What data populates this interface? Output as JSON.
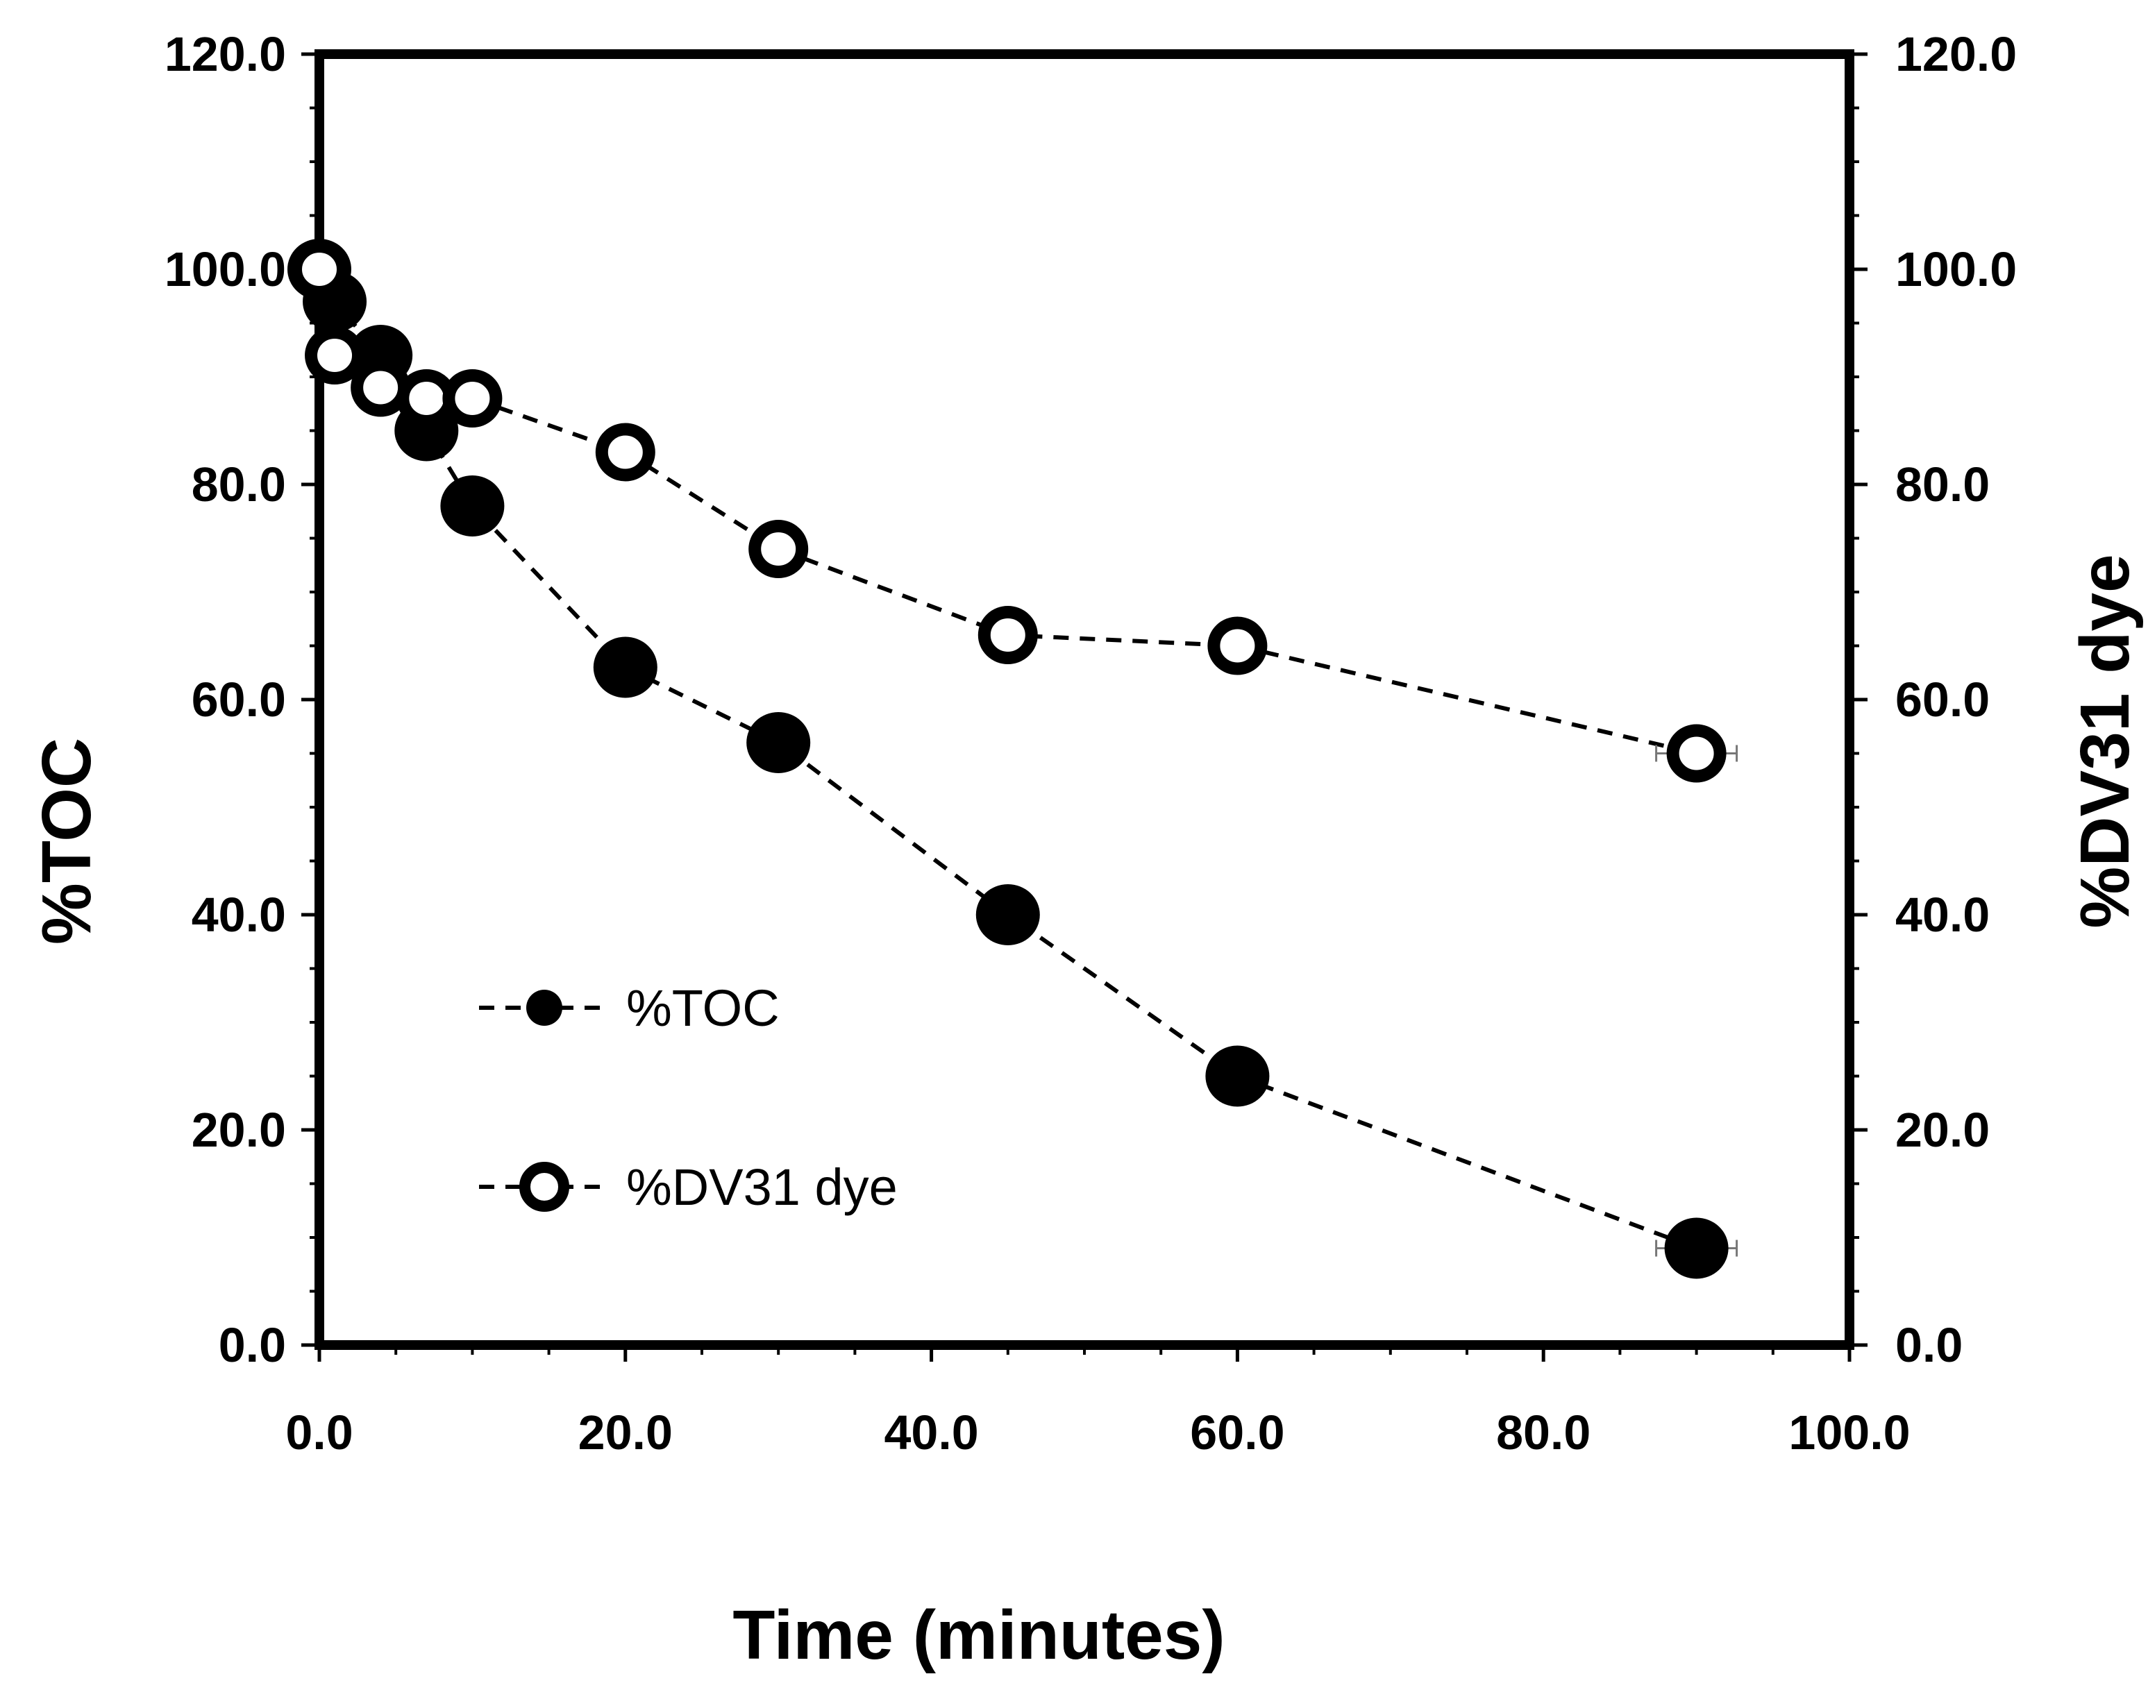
{
  "chart_data": {
    "type": "line",
    "title": "",
    "xlabel": "Time (minutes)",
    "ylabel": "%TOC",
    "y2label": "%DV31 dye",
    "xlim": [
      0,
      100
    ],
    "ylim": [
      0,
      120
    ],
    "y2lim": [
      0,
      120
    ],
    "x_ticks": [
      0,
      20,
      40,
      60,
      80,
      100
    ],
    "x_tick_labels": [
      "0.0",
      "20.0",
      "40.0",
      "60.0",
      "80.0",
      "100.0"
    ],
    "y_ticks": [
      0,
      20,
      40,
      60,
      80,
      100,
      120
    ],
    "y_tick_labels": [
      "0.0",
      "20.0",
      "40.0",
      "60.0",
      "80.0",
      "100.0",
      "120.0"
    ],
    "y2_tick_labels": [
      "0.0",
      "20.0",
      "40.0",
      "60.0",
      "80.0",
      "100.0",
      "120.0"
    ],
    "grid": false,
    "legend_position": "lower-left",
    "series": [
      {
        "name": "%TOC",
        "marker": "filled-circle",
        "line_style": "dashed",
        "color": "#000000",
        "x": [
          0,
          1,
          4,
          7,
          10,
          20,
          30,
          45,
          60,
          90
        ],
        "y": [
          100,
          97,
          92,
          85,
          78,
          63,
          56,
          40,
          25,
          9
        ]
      },
      {
        "name": "%DV31 dye",
        "marker": "open-circle",
        "line_style": "dashed",
        "color": "#000000",
        "x": [
          0,
          1,
          4,
          7,
          10,
          20,
          30,
          45,
          60,
          90
        ],
        "y": [
          100,
          92,
          89,
          88,
          88,
          83,
          74,
          66,
          65,
          55
        ]
      }
    ]
  }
}
